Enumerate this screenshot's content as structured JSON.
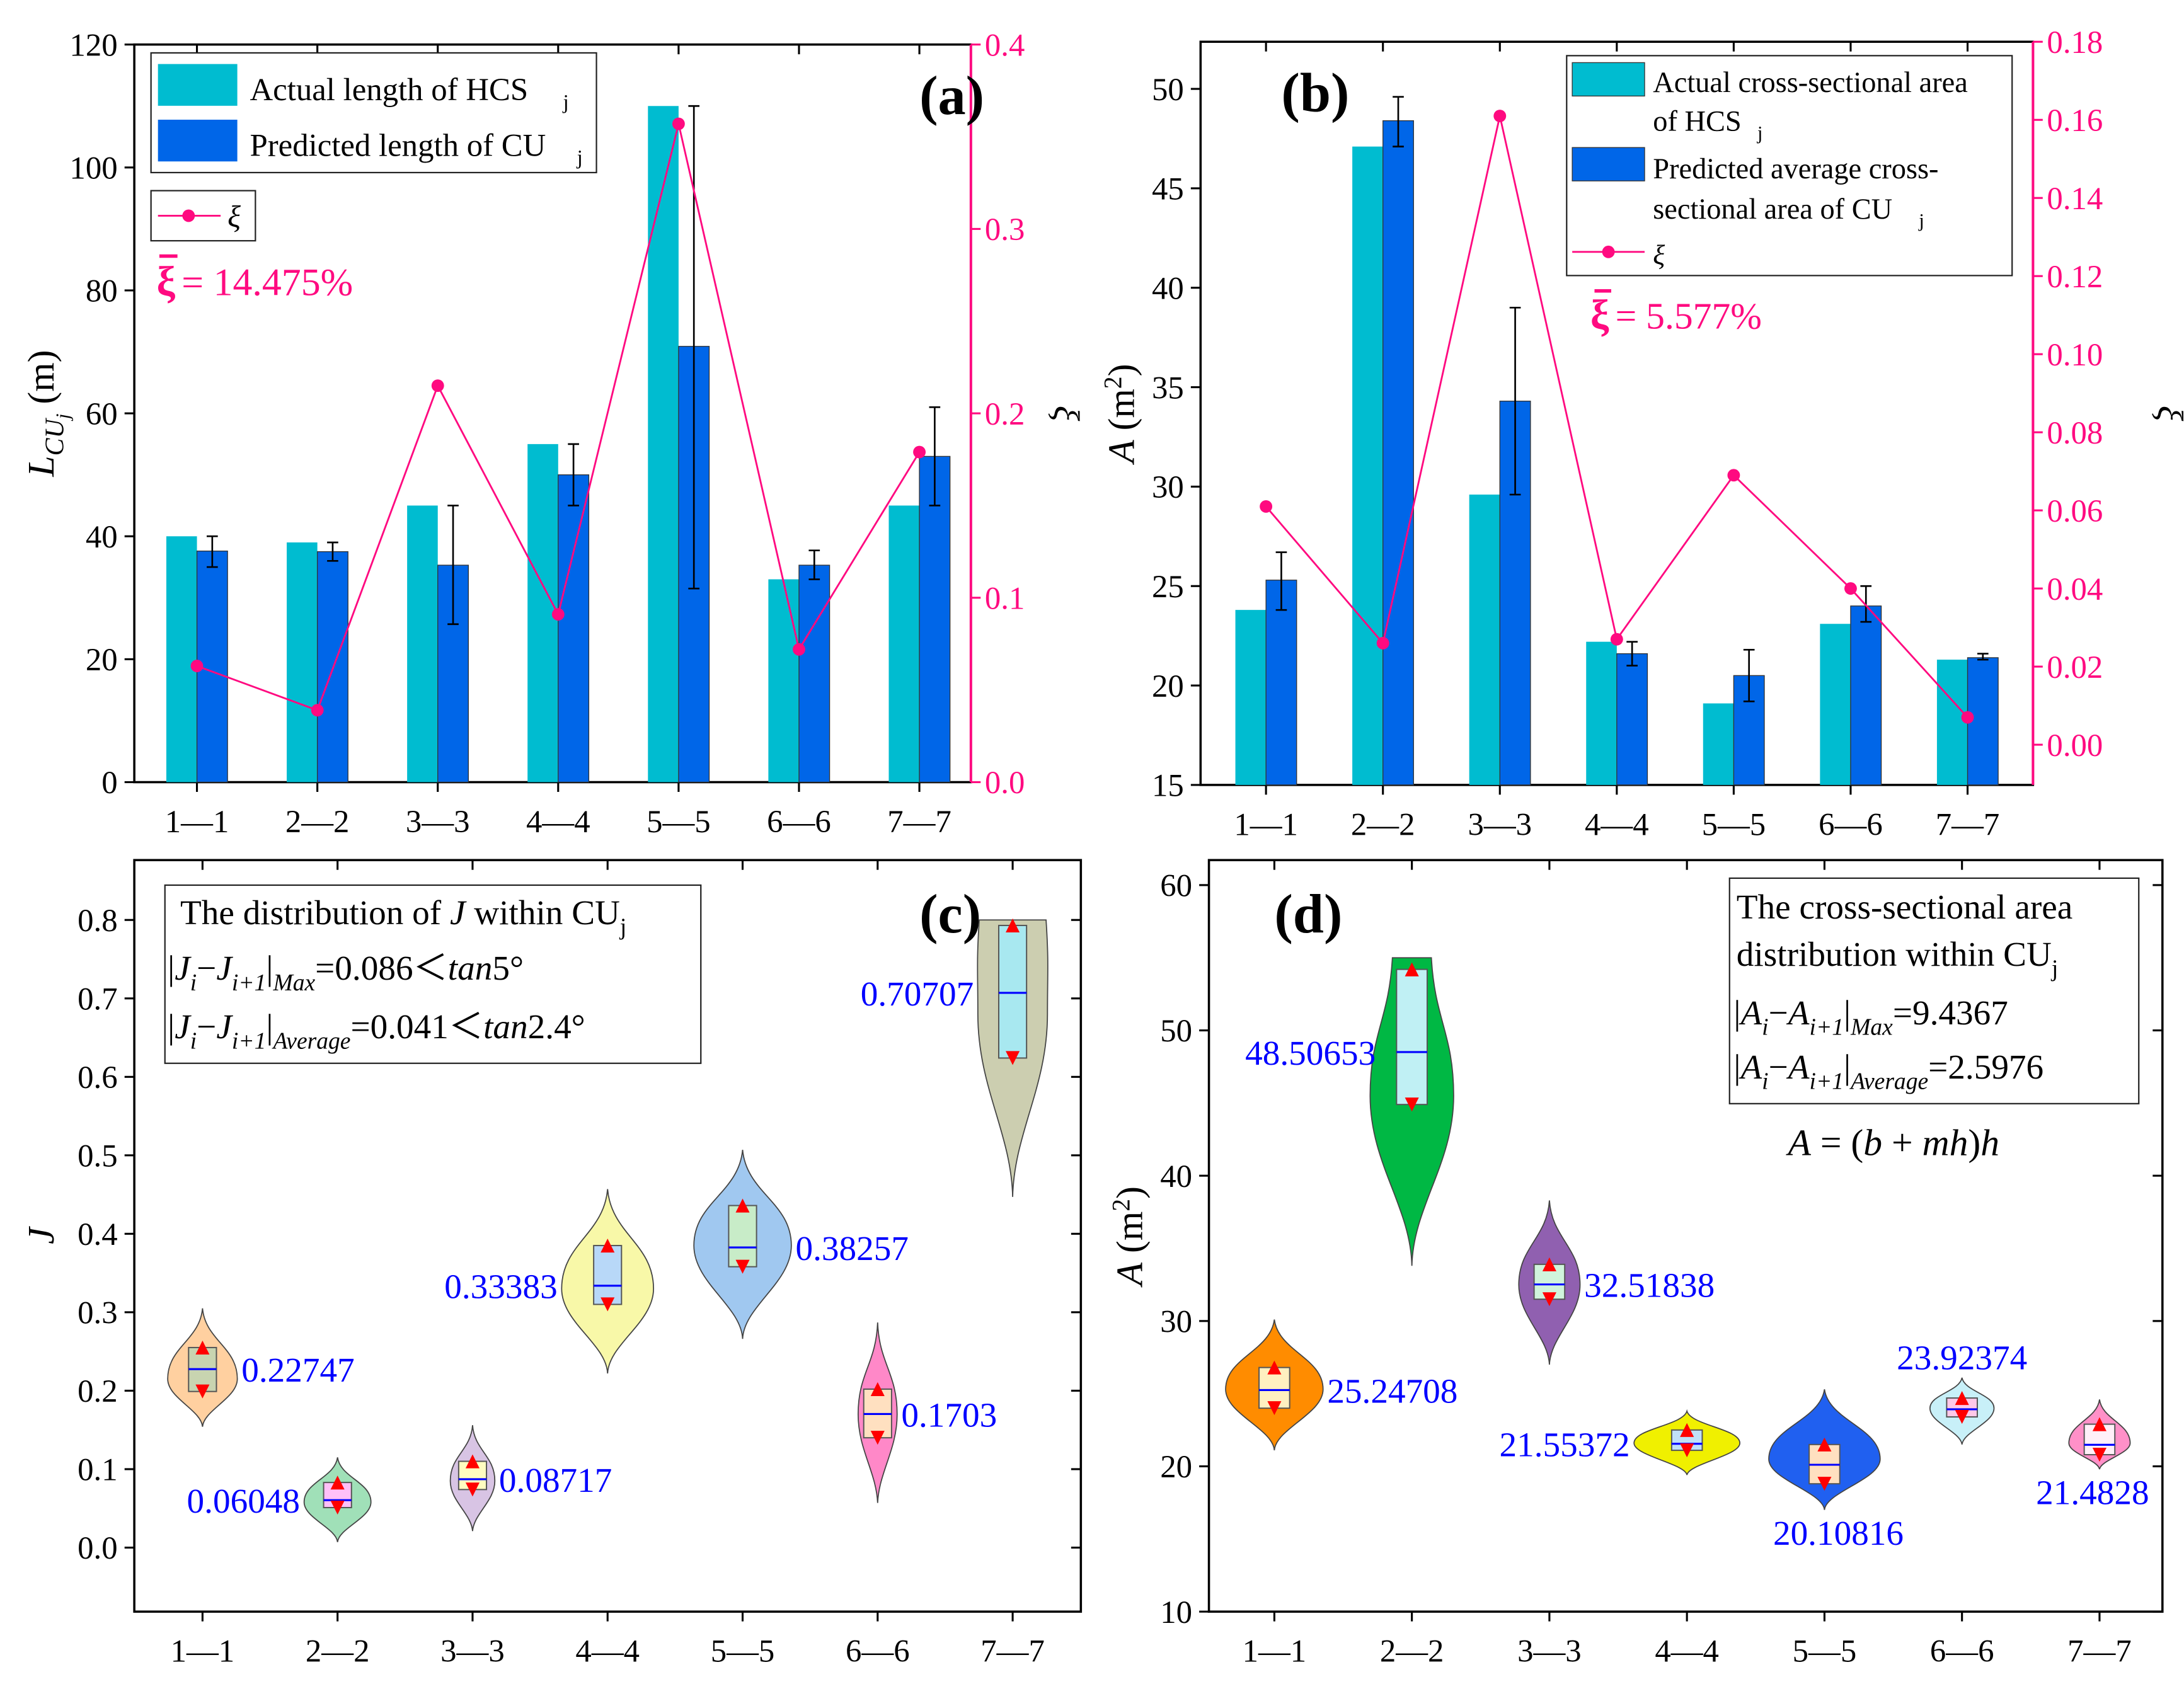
{
  "chart_data": [
    {
      "panel_label": "(a)",
      "type": "bar",
      "categories": [
        "1—1",
        "2—2",
        "3—3",
        "4—4",
        "5—5",
        "6—6",
        "7—7"
      ],
      "ylabel": {
        "main": "L",
        "sub": "CU",
        "subsub": "j",
        "unit": " (m)"
      },
      "y2label": "ξ",
      "ylim": [
        0,
        120
      ],
      "yticks": [
        "0",
        "20",
        "40",
        "60",
        "80",
        "100",
        "120"
      ],
      "y2lim": [
        0,
        0.4
      ],
      "y2ticks": [
        "0.0",
        "0.1",
        "0.2",
        "0.3",
        "0.4"
      ],
      "series": [
        {
          "name": "Actual length of  HCS",
          "sub": "j",
          "color": "#00bcd0",
          "values": [
            40,
            39,
            45,
            55,
            110,
            33,
            45
          ]
        },
        {
          "name": "Predicted length of CU",
          "sub": "j",
          "color": "#0066e8",
          "values": [
            37.6,
            37.5,
            35.3,
            50,
            70.9,
            35.3,
            53
          ],
          "err_low": [
            35,
            36,
            25.7,
            45,
            31.5,
            33,
            45
          ],
          "err_high": [
            40,
            39,
            45,
            55,
            110,
            37.7,
            61
          ]
        },
        {
          "name": "ξ",
          "axis": "right",
          "type": "line",
          "color": "#ff0a80",
          "values": [
            0.063,
            0.039,
            0.215,
            0.091,
            0.357,
            0.072,
            0.179
          ]
        }
      ],
      "annotation": {
        "symbol": "ξ",
        "text": " = 14.475%"
      }
    },
    {
      "panel_label": "(b)",
      "type": "bar",
      "categories": [
        "1—1",
        "2—2",
        "3—3",
        "4—4",
        "5—5",
        "6—6",
        "7—7"
      ],
      "ylabel": {
        "main": "A",
        "unit": "  (m",
        "sup": "2",
        "close": ")"
      },
      "y2label": "ξ",
      "ylim": [
        15,
        52.37
      ],
      "yticks": [
        "15",
        "20",
        "25",
        "30",
        "35",
        "40",
        "45",
        "50"
      ],
      "y2lim": [
        -0.0103,
        0.18
      ],
      "y2ticks": [
        "0.00",
        "0.02",
        "0.04",
        "0.06",
        "0.08",
        "0.10",
        "0.12",
        "0.14",
        "0.16",
        "0.18"
      ],
      "series": [
        {
          "name_lines": [
            "Actual cross-sectional area",
            "of HCS"
          ],
          "sub": "j",
          "color": "#00bcd0",
          "values": [
            23.8,
            47.1,
            29.6,
            22.2,
            19.1,
            23.1,
            21.3
          ]
        },
        {
          "name_lines": [
            "Predicted average cross-",
            "sectional area of  CU"
          ],
          "sub": "j",
          "color": "#0066e8",
          "values": [
            25.3,
            48.4,
            34.3,
            21.6,
            20.5,
            24.0,
            21.4
          ],
          "err_low": [
            23.8,
            47.1,
            29.6,
            21.0,
            19.2,
            23.2,
            21.3
          ],
          "err_high": [
            26.7,
            49.6,
            39.0,
            22.2,
            21.8,
            25.0,
            21.6
          ]
        },
        {
          "name": "ξ",
          "axis": "right",
          "type": "line",
          "color": "#ff0a80",
          "values": [
            0.061,
            0.026,
            0.161,
            0.027,
            0.069,
            0.04,
            0.007
          ]
        }
      ],
      "annotation": {
        "symbol": "ξ",
        "text": " = 5.577%"
      }
    },
    {
      "panel_label": "(c)",
      "type": "violin",
      "categories": [
        "1—1",
        "2—2",
        "3—3",
        "4—4",
        "5—5",
        "6—6",
        "7—7"
      ],
      "ylabel": {
        "main": "J"
      },
      "ylim": [
        -0.0816,
        0.8763
      ],
      "yticks": [
        "0.0",
        "0.1",
        "0.2",
        "0.3",
        "0.4",
        "0.5",
        "0.6",
        "0.7",
        "0.8"
      ],
      "violins": [
        {
          "median": 0.22747,
          "label": "0.22747",
          "label_side": "right",
          "q1": 0.199,
          "q3": 0.255,
          "min": 0.154,
          "max": 0.305,
          "mode": 0.215,
          "fill": "#ffd0a0",
          "box": "#c8d4b0"
        },
        {
          "median": 0.06048,
          "label": "0.06048",
          "label_side": "left",
          "q1": 0.051,
          "q3": 0.083,
          "min": 0.007,
          "max": 0.115,
          "mode": 0.058,
          "fill": "#a0e0b8",
          "box": "#ffc0f8"
        },
        {
          "median": 0.08717,
          "label": "0.08717",
          "label_side": "right",
          "q1": 0.074,
          "q3": 0.11,
          "min": 0.021,
          "max": 0.156,
          "mode": 0.085,
          "fill": "#d8c4e4",
          "box": "#fffcc0"
        },
        {
          "median": 0.33383,
          "label": "0.33383",
          "label_side": "left",
          "q1": 0.31,
          "q3": 0.385,
          "min": 0.222,
          "max": 0.457,
          "mode": 0.33,
          "fill": "#f8f8a8",
          "box": "#b8d8f8"
        },
        {
          "median": 0.38257,
          "label": "0.38257",
          "label_side": "right",
          "q1": 0.358,
          "q3": 0.436,
          "min": 0.266,
          "max": 0.507,
          "mode": 0.385,
          "fill": "#a0c8f0",
          "box": "#c8ecc8"
        },
        {
          "median": 0.1703,
          "label": "0.1703",
          "label_side": "right",
          "q1": 0.14,
          "q3": 0.202,
          "min": 0.057,
          "max": 0.287,
          "mode": 0.17,
          "fill": "#ff88c8",
          "box": "#ffe0c0"
        },
        {
          "median": 0.70707,
          "label": "0.70707",
          "label_side": "left",
          "q1": 0.624,
          "q3": 0.793,
          "min": 0.447,
          "max": 0.8,
          "mode": 0.68,
          "fill": "#ccceb0",
          "box": "#a8e8f0"
        }
      ],
      "annotation_lines": [
        [
          {
            "t": "The distribution of "
          },
          {
            "t": "J",
            "it": true
          },
          {
            "t": " within CU"
          },
          {
            "t": "j",
            "sub": true
          }
        ],
        [
          {
            "t": "|"
          },
          {
            "t": "J",
            "it": true
          },
          {
            "t": "i",
            "sub": true,
            "it": true
          },
          {
            "t": "−"
          },
          {
            "t": "J",
            "it": true
          },
          {
            "t": "i+1",
            "sub": true,
            "it": true
          },
          {
            "t": "|"
          },
          {
            "t": "Max",
            "sub": true,
            "it": true
          },
          {
            "t": "=0.086＜"
          },
          {
            "t": "tan",
            "it": true
          },
          {
            "t": "5°"
          }
        ],
        [
          {
            "t": "|"
          },
          {
            "t": "J",
            "it": true
          },
          {
            "t": "i",
            "sub": true,
            "it": true
          },
          {
            "t": "−"
          },
          {
            "t": "J",
            "it": true
          },
          {
            "t": "i+1",
            "sub": true,
            "it": true
          },
          {
            "t": "|"
          },
          {
            "t": "Average",
            "sub": true,
            "it": true
          },
          {
            "t": "=0.041＜"
          },
          {
            "t": "tan",
            "it": true
          },
          {
            "t": "2.4°"
          }
        ]
      ]
    },
    {
      "panel_label": "(d)",
      "type": "violin",
      "categories": [
        "1—1",
        "2—2",
        "3—3",
        "4—4",
        "5—5",
        "6—6",
        "7—7"
      ],
      "ylabel": {
        "main": "A",
        "unit": "  (m",
        "sup": "2",
        "close": ")"
      },
      "ylim": [
        10,
        61.72
      ],
      "yticks": [
        "10",
        "20",
        "30",
        "40",
        "50",
        "60"
      ],
      "violins": [
        {
          "median": 25.24708,
          "label": "25.24708",
          "label_side": "right",
          "q1": 24.0,
          "q3": 26.8,
          "min": 21.1,
          "max": 30.1,
          "mode": 25.3,
          "fill": "#ff8c00",
          "box": "#fff0c0"
        },
        {
          "median": 48.50653,
          "label": "48.50653",
          "label_side": "left",
          "q1": 44.9,
          "q3": 54.2,
          "min": 33.8,
          "max": 55.0,
          "mode": 45.5,
          "fill": "#00b844",
          "box": "#c0f0f4"
        },
        {
          "median": 32.51838,
          "label": "32.51838",
          "label_side": "right",
          "q1": 31.5,
          "q3": 33.9,
          "min": 27.0,
          "max": 38.3,
          "mode": 32.5,
          "fill": "#9060b0",
          "box": "#d0f4dc"
        },
        {
          "median": 21.55372,
          "label": "21.55372",
          "label_side": "left",
          "q1": 21.1,
          "q3": 22.5,
          "min": 19.4,
          "max": 23.8,
          "mode": 21.6,
          "fill": "#f0f000",
          "box": "#c0e0f8"
        },
        {
          "median": 20.10816,
          "label": "20.10816",
          "label_side": "below",
          "q1": 18.8,
          "q3": 21.5,
          "min": 17.0,
          "max": 25.3,
          "mode": 20.5,
          "fill": "#2060f0",
          "box": "#ffe0c0"
        },
        {
          "median": 23.92374,
          "label": "23.92374",
          "label_side": "above",
          "q1": 23.4,
          "q3": 24.7,
          "min": 21.5,
          "max": 26.1,
          "mode": 24.0,
          "fill": "#c8f0f8",
          "box": "#ffc8e8"
        },
        {
          "median": 21.4828,
          "label": "21.4828",
          "label_side": "below",
          "q1": 20.8,
          "q3": 22.9,
          "min": 19.8,
          "max": 24.6,
          "mode": 21.6,
          "fill": "#ff90c8",
          "box": "#fff0f8"
        }
      ],
      "annotation_lines": [
        [
          {
            "t": "The cross-sectional area"
          }
        ],
        [
          {
            "t": "distribution within CU"
          },
          {
            "t": "j",
            "sub": true
          }
        ],
        [
          {
            "t": "|"
          },
          {
            "t": "A",
            "it": true
          },
          {
            "t": "i",
            "sub": true,
            "it": true
          },
          {
            "t": "−"
          },
          {
            "t": "A",
            "it": true
          },
          {
            "t": "i+1",
            "sub": true,
            "it": true
          },
          {
            "t": "|"
          },
          {
            "t": "Max",
            "sub": true,
            "it": true
          },
          {
            "t": "=9.4367"
          }
        ],
        [
          {
            "t": "|"
          },
          {
            "t": "A",
            "it": true
          },
          {
            "t": "i",
            "sub": true,
            "it": true
          },
          {
            "t": "−"
          },
          {
            "t": "A",
            "it": true
          },
          {
            "t": "i+1",
            "sub": true,
            "it": true
          },
          {
            "t": "|"
          },
          {
            "t": "Average",
            "sub": true,
            "it": true
          },
          {
            "t": "=2.5976"
          }
        ]
      ],
      "formula": [
        {
          "t": "A",
          "it": true
        },
        {
          "t": " = ("
        },
        {
          "t": "b",
          "it": true
        },
        {
          "t": " + "
        },
        {
          "t": "mh",
          "it": true
        },
        {
          "t": ")"
        },
        {
          "t": "h",
          "it": true
        }
      ]
    }
  ]
}
